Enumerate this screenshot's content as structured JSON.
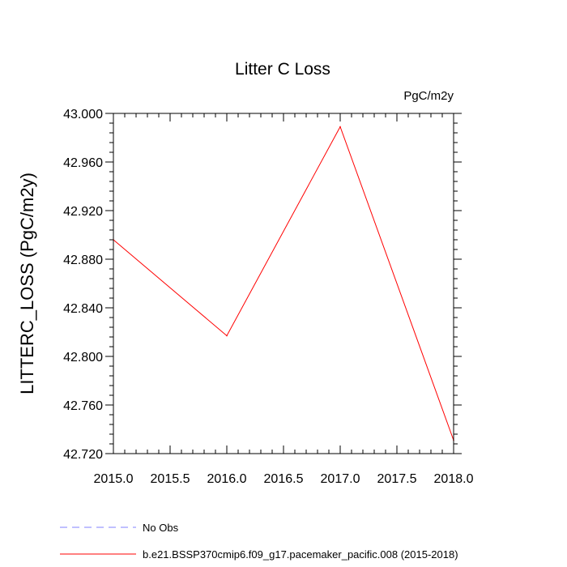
{
  "chart_data": {
    "type": "line",
    "title": "Litter C Loss",
    "units_label": "PgC/m2y",
    "xlabel": "",
    "ylabel": "LITTERC_LOSS  (PgC/m2y)",
    "xlim": [
      2015.0,
      2018.0
    ],
    "ylim": [
      42.72,
      43.0
    ],
    "x_ticks": [
      "2015.0",
      "2015.5",
      "2016.0",
      "2016.5",
      "2017.0",
      "2017.5",
      "2018.0"
    ],
    "y_ticks": [
      "42.720",
      "42.760",
      "42.800",
      "42.840",
      "42.880",
      "42.920",
      "42.960",
      "43.000"
    ],
    "grid": false,
    "legend_position": "bottom",
    "series": [
      {
        "name": "b.e21.BSSP370cmip6.f09_g17.pacemaker_pacific.008 (2015-2018)",
        "color": "#ff0000",
        "style": "solid",
        "x": [
          2015.0,
          2016.0,
          2017.0,
          2018.0
        ],
        "y": [
          42.896,
          42.817,
          42.989,
          42.731
        ]
      }
    ],
    "legend": [
      {
        "label": "No Obs",
        "color": "#8080ff",
        "style": "dashed"
      },
      {
        "label": "b.e21.BSSP370cmip6.f09_g17.pacemaker_pacific.008 (2015-2018)",
        "color": "#ff0000",
        "style": "solid"
      }
    ]
  }
}
